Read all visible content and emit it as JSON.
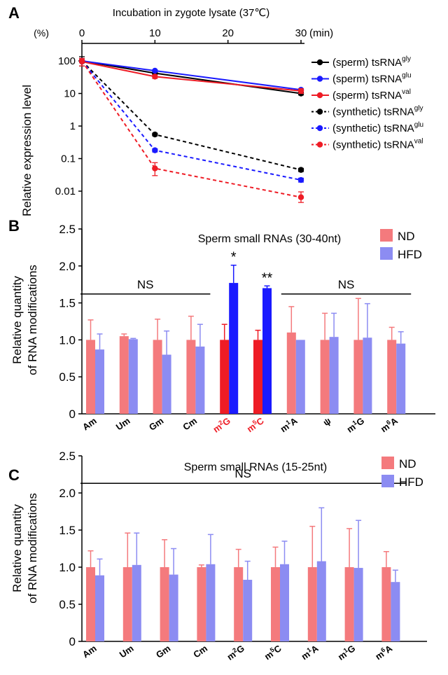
{
  "chart_data": [
    {
      "panel_label": "A",
      "type": "line",
      "title": "Incubation in zygote lysate (37℃)",
      "x_unit": "(min)",
      "y_unit": "(%)",
      "ylabel": "Relative expression level",
      "x_ticks": [
        "0",
        "10",
        "20",
        "30"
      ],
      "y_ticks": [
        "100",
        "10",
        "1",
        "0.1",
        "0.01"
      ],
      "y_scale": "log",
      "xlim": [
        0,
        30
      ],
      "ylim": [
        0.005,
        150
      ],
      "x": [
        0,
        10,
        30
      ],
      "legend_position": "right",
      "series": [
        {
          "name_prefix": "(sperm) tsRNA",
          "name_sup": "gly",
          "color": "#000000",
          "dash": "solid",
          "values": [
            100,
            42,
            10
          ],
          "err_low": [
            30,
            3,
            1
          ],
          "err_high": [
            35,
            3,
            1
          ]
        },
        {
          "name_prefix": "(sperm) tsRNA",
          "name_sup": "glu",
          "color": "#1a1aff",
          "dash": "solid",
          "values": [
            100,
            50,
            13
          ],
          "err_low": [
            10,
            3,
            1
          ],
          "err_high": [
            10,
            3,
            1
          ]
        },
        {
          "name_prefix": "(sperm) tsRNA",
          "name_sup": "val",
          "color": "#ee1c25",
          "dash": "solid",
          "values": [
            95,
            33,
            12
          ],
          "err_low": [
            25,
            4,
            2
          ],
          "err_high": [
            25,
            4,
            2
          ]
        },
        {
          "name_prefix": "(synthetic) tsRNA",
          "name_sup": "gly",
          "color": "#000000",
          "dash": "dotted",
          "values": [
            100,
            0.55,
            0.045
          ],
          "err_low": [
            10,
            0.05,
            0.005
          ],
          "err_high": [
            10,
            0.05,
            0.005
          ]
        },
        {
          "name_prefix": "(synthetic) tsRNA",
          "name_sup": "glu",
          "color": "#1a1aff",
          "dash": "dotted",
          "values": [
            100,
            0.18,
            0.022
          ],
          "err_low": [
            10,
            0.02,
            0.003
          ],
          "err_high": [
            10,
            0.02,
            0.003
          ]
        },
        {
          "name_prefix": "(synthetic) tsRNA",
          "name_sup": "val",
          "color": "#ee1c25",
          "dash": "dotted",
          "values": [
            100,
            0.05,
            0.0065
          ],
          "err_low": [
            10,
            0.02,
            0.002
          ],
          "err_high": [
            10,
            0.025,
            0.003
          ]
        }
      ]
    },
    {
      "panel_label": "B",
      "type": "bar",
      "title": "Sperm small RNAs (30-40nt)",
      "ylabel": [
        "Relative quantity",
        "of RNA modifications"
      ],
      "ylim": [
        0,
        2.5
      ],
      "y_ticks": [
        "0",
        "0.5",
        "1.0",
        "1.5",
        "2.0",
        "2.5"
      ],
      "categories": [
        {
          "base": "Am",
          "sup": "",
          "tail": "",
          "color": "#000000"
        },
        {
          "base": "Um",
          "sup": "",
          "tail": "",
          "color": "#000000"
        },
        {
          "base": "Gm",
          "sup": "",
          "tail": "",
          "color": "#000000"
        },
        {
          "base": "Cm",
          "sup": "",
          "tail": "",
          "color": "#000000"
        },
        {
          "base": "m",
          "sup": "2",
          "tail": "G",
          "color": "#ee1c25"
        },
        {
          "base": "m",
          "sup": "5",
          "tail": "C",
          "color": "#ee1c25"
        },
        {
          "base": "m",
          "sup": "1",
          "tail": "A",
          "color": "#000000"
        },
        {
          "base": "ψ",
          "sup": "",
          "tail": "",
          "color": "#000000"
        },
        {
          "base": "m",
          "sup": "1",
          "tail": "G",
          "color": "#000000"
        },
        {
          "base": "m",
          "sup": "6",
          "tail": "A",
          "color": "#000000"
        }
      ],
      "series": [
        {
          "name": "ND",
          "color": "#f47a7d",
          "highlight_color": "#ee1c25",
          "values": [
            1.0,
            1.05,
            1.0,
            1.0,
            1.0,
            1.0,
            1.1,
            1.0,
            1.0,
            1.0
          ],
          "errors": [
            0.27,
            0.03,
            0.28,
            0.32,
            0.21,
            0.13,
            0.35,
            0.36,
            0.56,
            0.17
          ]
        },
        {
          "name": "HFD",
          "color": "#8c8cf2",
          "highlight_color": "#1a1aff",
          "values": [
            0.87,
            1.01,
            0.8,
            0.91,
            1.77,
            1.7,
            1.0,
            1.04,
            1.03,
            0.95
          ],
          "errors": [
            0.21,
            0.01,
            0.32,
            0.3,
            0.24,
            0.03,
            0.0,
            0.32,
            0.46,
            0.16
          ]
        }
      ],
      "highlight_categories": [
        4,
        5
      ],
      "annotations": [
        {
          "text": "*",
          "category_index": 4,
          "series_index": 1
        },
        {
          "text": "**",
          "category_index": 5,
          "series_index": 1
        },
        {
          "text": "NS",
          "from": 0,
          "to": 3,
          "level": 1.62
        },
        {
          "text": "NS",
          "from": 6,
          "to": 9,
          "level": 1.62
        }
      ],
      "legend_position": "top-right"
    },
    {
      "panel_label": "C",
      "type": "bar",
      "title": "Sperm small RNAs (15-25nt)",
      "ylabel": [
        "Relative quantity",
        "of RNA modifications"
      ],
      "ylim": [
        0,
        2.5
      ],
      "y_ticks": [
        "0",
        "0.5",
        "1.0",
        "1.5",
        "2.0",
        "2.5"
      ],
      "categories": [
        {
          "base": "Am",
          "sup": "",
          "tail": "",
          "color": "#000000"
        },
        {
          "base": "Um",
          "sup": "",
          "tail": "",
          "color": "#000000"
        },
        {
          "base": "Gm",
          "sup": "",
          "tail": "",
          "color": "#000000"
        },
        {
          "base": "Cm",
          "sup": "",
          "tail": "",
          "color": "#000000"
        },
        {
          "base": "m",
          "sup": "2",
          "tail": "G",
          "color": "#000000"
        },
        {
          "base": "m",
          "sup": "5",
          "tail": "C",
          "color": "#000000"
        },
        {
          "base": "m",
          "sup": "1",
          "tail": "A",
          "color": "#000000"
        },
        {
          "base": "m",
          "sup": "1",
          "tail": "G",
          "color": "#000000"
        },
        {
          "base": "m",
          "sup": "6",
          "tail": "A",
          "color": "#000000"
        }
      ],
      "series": [
        {
          "name": "ND",
          "color": "#f47a7d",
          "values": [
            1.0,
            1.0,
            1.0,
            1.0,
            1.0,
            1.0,
            1.0,
            1.0,
            1.0
          ],
          "errors": [
            0.22,
            0.46,
            0.37,
            0.03,
            0.24,
            0.27,
            0.55,
            0.52,
            0.21
          ]
        },
        {
          "name": "HFD",
          "color": "#8c8cf2",
          "values": [
            0.89,
            1.03,
            0.9,
            1.04,
            0.83,
            1.04,
            1.08,
            0.99,
            0.8
          ],
          "errors": [
            0.22,
            0.43,
            0.35,
            0.4,
            0.25,
            0.31,
            0.72,
            0.64,
            0.16
          ]
        }
      ],
      "highlight_categories": [],
      "annotations": [
        {
          "text": "NS",
          "from": 0,
          "to": 8,
          "level": 2.13
        }
      ],
      "legend_position": "top-right"
    }
  ]
}
